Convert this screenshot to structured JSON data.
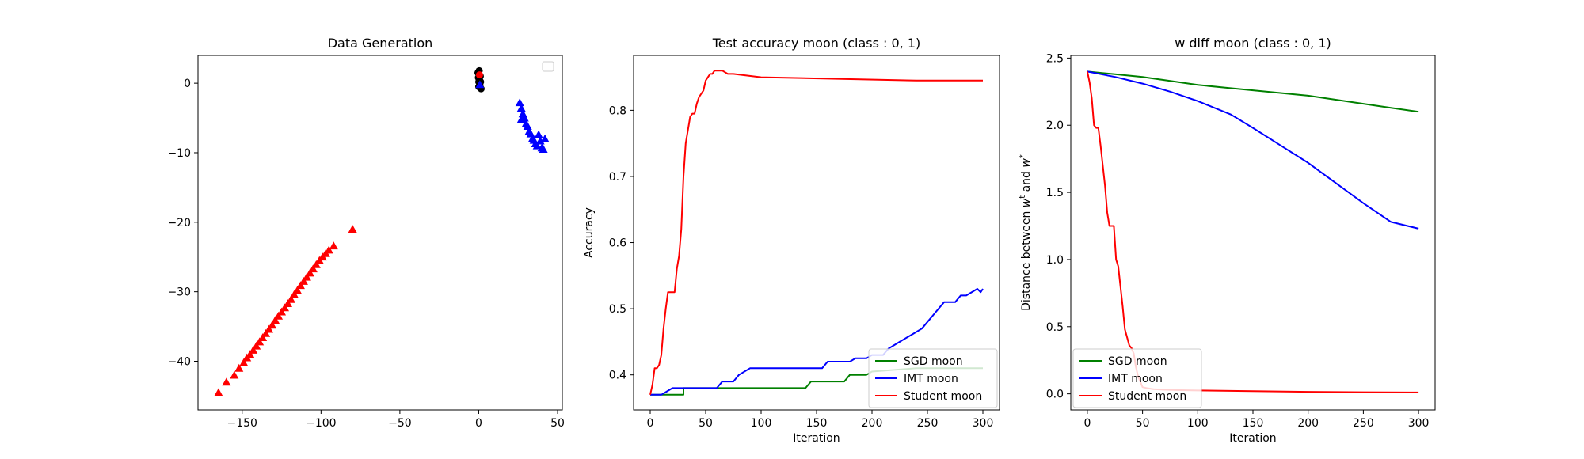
{
  "chart_data": [
    {
      "type": "scatter",
      "title": "Data Generation",
      "xlabel": "",
      "ylabel": "",
      "xlim": [
        -178,
        53
      ],
      "ylim": [
        -47,
        4
      ],
      "xticks": [
        -150,
        -100,
        -50,
        0,
        50
      ],
      "yticks": [
        0,
        -10,
        -20,
        -30,
        -40
      ],
      "xtick_labels": [
        "−150",
        "−100",
        "−50",
        "0",
        "50"
      ],
      "ytick_labels": [
        "0",
        "−10",
        "−20",
        "−30",
        "−40"
      ],
      "grid": false,
      "legend": "top-right (empty)",
      "groups": [
        {
          "marker": "triangle",
          "color": "#ff0000",
          "points": [
            [
              -165,
              -44.5
            ],
            [
              -160,
              -43
            ],
            [
              -155,
              -42
            ],
            [
              -152,
              -41
            ],
            [
              -149,
              -40.2
            ],
            [
              -147,
              -39.5
            ],
            [
              -145,
              -39
            ],
            [
              -143,
              -38.4
            ],
            [
              -141,
              -37.8
            ],
            [
              -139,
              -37.2
            ],
            [
              -137,
              -36.6
            ],
            [
              -135,
              -36
            ],
            [
              -133,
              -35.4
            ],
            [
              -131,
              -34.8
            ],
            [
              -129,
              -34.1
            ],
            [
              -127,
              -33.5
            ],
            [
              -125,
              -32.9
            ],
            [
              -123,
              -32.3
            ],
            [
              -121,
              -31.7
            ],
            [
              -119,
              -31.1
            ],
            [
              -117,
              -30.4
            ],
            [
              -115,
              -29.8
            ],
            [
              -113,
              -29.1
            ],
            [
              -111,
              -28.5
            ],
            [
              -109,
              -27.9
            ],
            [
              -107,
              -27.3
            ],
            [
              -105,
              -26.7
            ],
            [
              -103,
              -26.1
            ],
            [
              -101,
              -25.5
            ],
            [
              -99,
              -25
            ],
            [
              -97,
              -24.5
            ],
            [
              -95,
              -24
            ],
            [
              -92,
              -23.4
            ],
            [
              -80,
              -21
            ]
          ]
        },
        {
          "marker": "triangle",
          "color": "#0000ff",
          "points": [
            [
              26,
              -2.8
            ],
            [
              27,
              -3.6
            ],
            [
              28,
              -4.4
            ],
            [
              27,
              -5.2
            ],
            [
              29,
              -5
            ],
            [
              30,
              -5.8
            ],
            [
              31,
              -6.2
            ],
            [
              32,
              -6.9
            ],
            [
              33,
              -7.3
            ],
            [
              34,
              -8
            ],
            [
              35,
              -8.2
            ],
            [
              36,
              -8.7
            ],
            [
              37,
              -9
            ],
            [
              38,
              -7.4
            ],
            [
              39,
              -8.3
            ],
            [
              40,
              -9.3
            ],
            [
              41,
              -9.5
            ],
            [
              42,
              -8
            ]
          ]
        },
        {
          "marker": "circle",
          "color": "#000000",
          "points": [
            [
              0,
              -0.5
            ],
            [
              0.5,
              0.5
            ],
            [
              1,
              1
            ],
            [
              -0.5,
              1.5
            ],
            [
              0.8,
              -0.3
            ],
            [
              1.2,
              0.2
            ],
            [
              -0.2,
              0.8
            ],
            [
              0.3,
              1.8
            ],
            [
              1.5,
              -0.8
            ],
            [
              0,
              0.2
            ]
          ]
        },
        {
          "marker": "circle",
          "color": "#ff0000",
          "points": [
            [
              0.5,
              1.2
            ]
          ]
        },
        {
          "marker": "triangle",
          "color": "#0000ff",
          "points": [
            [
              0.7,
              -0.2
            ]
          ]
        }
      ]
    },
    {
      "type": "line",
      "title": "Test accuracy moon (class : 0, 1)",
      "xlabel": "Iteration",
      "ylabel": "Accuracy",
      "xlim": [
        -15,
        315
      ],
      "ylim": [
        0.347,
        0.883
      ],
      "xticks": [
        0,
        50,
        100,
        150,
        200,
        250,
        300
      ],
      "yticks": [
        0.4,
        0.5,
        0.6,
        0.7,
        0.8
      ],
      "xtick_labels": [
        "0",
        "50",
        "100",
        "150",
        "200",
        "250",
        "300"
      ],
      "ytick_labels": [
        "0.4",
        "0.5",
        "0.6",
        "0.7",
        "0.8"
      ],
      "grid": false,
      "legend": "bottom-right",
      "series": [
        {
          "name": "SGD moon",
          "color": "#008000",
          "x": [
            0,
            30,
            30,
            140,
            145,
            175,
            180,
            195,
            200,
            240,
            300
          ],
          "y": [
            0.37,
            0.37,
            0.38,
            0.38,
            0.39,
            0.39,
            0.4,
            0.4,
            0.405,
            0.41,
            0.41
          ]
        },
        {
          "name": "IMT moon",
          "color": "#0000ff",
          "x": [
            0,
            10,
            15,
            20,
            30,
            60,
            65,
            75,
            80,
            90,
            110,
            155,
            160,
            180,
            185,
            195,
            200,
            210,
            215,
            220,
            225,
            230,
            235,
            240,
            245,
            250,
            255,
            260,
            265,
            270,
            275,
            280,
            285,
            295,
            298,
            300
          ],
          "y": [
            0.37,
            0.37,
            0.375,
            0.38,
            0.38,
            0.38,
            0.39,
            0.39,
            0.4,
            0.41,
            0.41,
            0.41,
            0.42,
            0.42,
            0.425,
            0.425,
            0.43,
            0.43,
            0.44,
            0.445,
            0.45,
            0.455,
            0.46,
            0.465,
            0.47,
            0.48,
            0.49,
            0.5,
            0.51,
            0.51,
            0.51,
            0.52,
            0.52,
            0.53,
            0.525,
            0.53
          ]
        },
        {
          "name": "Student moon",
          "color": "#ff0000",
          "x": [
            0,
            2,
            4,
            6,
            8,
            10,
            12,
            14,
            16,
            18,
            20,
            22,
            24,
            26,
            28,
            30,
            32,
            34,
            36,
            38,
            40,
            42,
            44,
            46,
            48,
            50,
            52,
            54,
            56,
            58,
            60,
            65,
            70,
            75,
            100,
            240,
            300
          ],
          "y": [
            0.37,
            0.385,
            0.41,
            0.41,
            0.415,
            0.43,
            0.47,
            0.5,
            0.525,
            0.525,
            0.525,
            0.525,
            0.56,
            0.58,
            0.62,
            0.7,
            0.75,
            0.77,
            0.79,
            0.795,
            0.795,
            0.81,
            0.82,
            0.825,
            0.83,
            0.845,
            0.85,
            0.855,
            0.855,
            0.86,
            0.86,
            0.86,
            0.855,
            0.855,
            0.85,
            0.845,
            0.845
          ]
        }
      ]
    },
    {
      "type": "line",
      "title": "w diff moon (class : 0, 1)",
      "xlabel": "Iteration",
      "ylabel": "Distance between w^t and w^*",
      "ylabel_parts": [
        "Distance between ",
        "w",
        "t",
        " and ",
        "w",
        "*"
      ],
      "xlim": [
        -15,
        315
      ],
      "ylim": [
        -0.12,
        2.52
      ],
      "xticks": [
        0,
        50,
        100,
        150,
        200,
        250,
        300
      ],
      "yticks": [
        0.0,
        0.5,
        1.0,
        1.5,
        2.0,
        2.5
      ],
      "xtick_labels": [
        "0",
        "50",
        "100",
        "150",
        "200",
        "250",
        "300"
      ],
      "ytick_labels": [
        "0.0",
        "0.5",
        "1.0",
        "1.5",
        "2.0",
        "2.5"
      ],
      "grid": false,
      "legend": "bottom-left",
      "series": [
        {
          "name": "SGD moon",
          "color": "#008000",
          "x": [
            0,
            25,
            50,
            75,
            100,
            125,
            150,
            175,
            200,
            225,
            250,
            275,
            300
          ],
          "y": [
            2.4,
            2.38,
            2.36,
            2.33,
            2.3,
            2.28,
            2.26,
            2.24,
            2.22,
            2.19,
            2.16,
            2.13,
            2.1
          ]
        },
        {
          "name": "IMT moon",
          "color": "#0000ff",
          "x": [
            0,
            25,
            50,
            75,
            100,
            130,
            150,
            175,
            200,
            225,
            250,
            275,
            300
          ],
          "y": [
            2.4,
            2.36,
            2.31,
            2.25,
            2.18,
            2.08,
            1.98,
            1.85,
            1.72,
            1.57,
            1.42,
            1.28,
            1.23
          ]
        },
        {
          "name": "Student moon",
          "color": "#ff0000",
          "x": [
            0,
            2,
            4,
            6,
            8,
            10,
            12,
            14,
            16,
            18,
            20,
            22,
            24,
            26,
            28,
            30,
            32,
            34,
            36,
            38,
            40,
            42,
            44,
            46,
            48,
            50,
            55,
            60,
            70,
            80,
            100,
            150,
            200,
            250,
            300
          ],
          "y": [
            2.4,
            2.32,
            2.2,
            2.0,
            1.98,
            1.98,
            1.85,
            1.7,
            1.55,
            1.35,
            1.25,
            1.25,
            1.25,
            1.0,
            0.95,
            0.8,
            0.65,
            0.48,
            0.42,
            0.36,
            0.34,
            0.3,
            0.2,
            0.13,
            0.09,
            0.05,
            0.04,
            0.035,
            0.03,
            0.028,
            0.025,
            0.02,
            0.015,
            0.012,
            0.01
          ]
        }
      ]
    }
  ]
}
